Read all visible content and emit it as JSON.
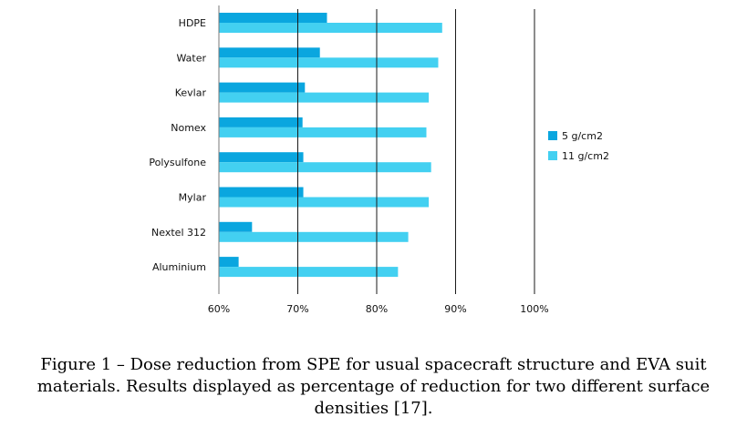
{
  "chart_data": {
    "type": "bar",
    "orientation": "horizontal",
    "categories": [
      "HDPE",
      "Water",
      "Kevlar",
      "Nomex",
      "Polysulfone",
      "Mylar",
      "Nextel 312",
      "Aluminium"
    ],
    "series": [
      {
        "name": "5 g/cm2",
        "color": "#0aa6df",
        "values": [
          73.7,
          72.8,
          70.9,
          70.6,
          70.7,
          70.7,
          64.2,
          62.5
        ]
      },
      {
        "name": "11 g/cm2",
        "color": "#43d0f1",
        "values": [
          88.3,
          87.8,
          86.6,
          86.3,
          86.9,
          86.6,
          84.0,
          82.7
        ]
      }
    ],
    "xlim": [
      60,
      100
    ],
    "xticks": [
      60,
      70,
      80,
      90,
      100
    ],
    "xtick_labels": [
      "60%",
      "70%",
      "80%",
      "90%",
      "100%"
    ],
    "grid": "vertical",
    "legend": "right"
  },
  "caption": "Figure 1 – Dose reduction from SPE for usual spacecraft structure and EVA suit materials. Results displayed as percentage of reduction for two different surface densities [17]."
}
